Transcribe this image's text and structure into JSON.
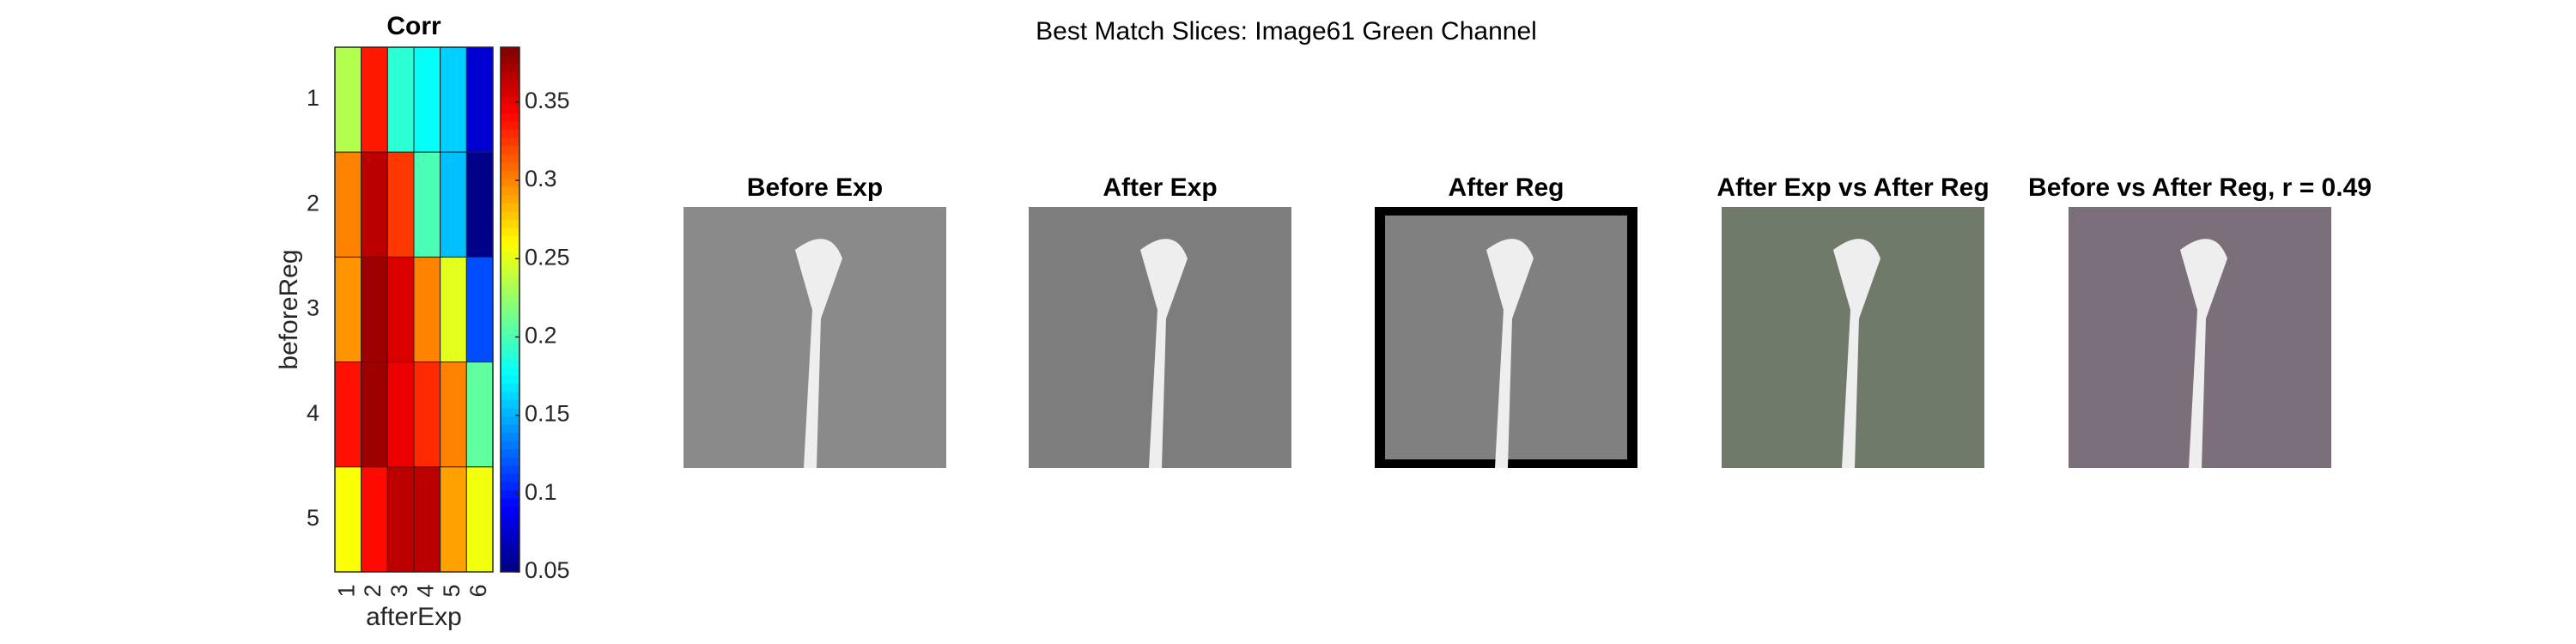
{
  "title": "Best Match Slices: Image61 Green Channel",
  "chart_data": {
    "type": "heatmap",
    "title": "Corr",
    "xlabel": "afterExp",
    "ylabel": "beforeReg",
    "x": [
      1,
      2,
      3,
      4,
      5,
      6
    ],
    "y": [
      1,
      2,
      3,
      4,
      5
    ],
    "z": [
      [
        0.234,
        0.335,
        0.19,
        0.177,
        0.16,
        0.077
      ],
      [
        0.3,
        0.365,
        0.325,
        0.2,
        0.155,
        0.053
      ],
      [
        0.295,
        0.375,
        0.355,
        0.3,
        0.25,
        0.117
      ],
      [
        0.338,
        0.375,
        0.35,
        0.33,
        0.3,
        0.207
      ],
      [
        0.258,
        0.34,
        0.365,
        0.365,
        0.29,
        0.255
      ]
    ],
    "colormap": "jet",
    "clim": [
      0.05,
      0.385
    ],
    "cticks": [
      0.05,
      0.1,
      0.15,
      0.2,
      0.25,
      0.3,
      0.35
    ]
  },
  "panels": [
    {
      "title": "Before Exp"
    },
    {
      "title": "After Exp"
    },
    {
      "title": "After Reg"
    },
    {
      "title": "After Exp vs After Reg"
    },
    {
      "title": "Before vs After Reg, r = 0.49"
    }
  ]
}
